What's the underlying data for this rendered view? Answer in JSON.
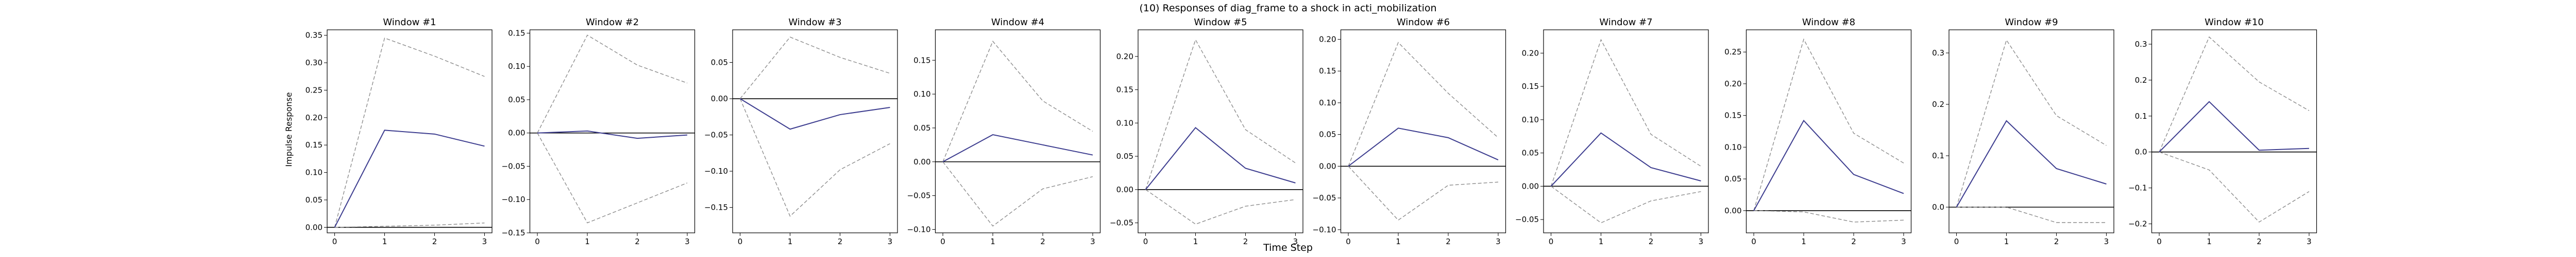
{
  "figure": {
    "suptitle": "(10) Responses of diag_frame to a shock in acti_mobilization",
    "xlabel": "Time Step",
    "ylabel": "Impulse Response"
  },
  "colors": {
    "irf": "#3d3d8f",
    "band": "#8c8c8c",
    "zero": "#000000"
  },
  "chart_data": [
    {
      "type": "line",
      "title": "Window #1",
      "x": [
        0,
        1,
        2,
        3
      ],
      "xticks": [
        0,
        1,
        2,
        3
      ],
      "ylim": [
        -0.01,
        0.36
      ],
      "yticks": [
        0.0,
        0.05,
        0.1,
        0.15,
        0.2,
        0.25,
        0.3,
        0.35
      ],
      "yticklabels": [
        "0.00",
        "0.05",
        "0.10",
        "0.15",
        "0.20",
        "0.25",
        "0.30",
        "0.35"
      ],
      "irf": [
        0,
        0.177,
        0.17,
        0.148
      ],
      "upper": [
        0,
        0.345,
        0.312,
        0.275
      ],
      "lower": [
        0,
        0.002,
        0.004,
        0.008
      ]
    },
    {
      "type": "line",
      "title": "Window #2",
      "x": [
        0,
        1,
        2,
        3
      ],
      "xticks": [
        0,
        1,
        2,
        3
      ],
      "ylim": [
        -0.15,
        0.155
      ],
      "yticks": [
        -0.15,
        -0.1,
        -0.05,
        0.0,
        0.05,
        0.1,
        0.15
      ],
      "yticklabels": [
        "−0.15",
        "−0.10",
        "−0.05",
        "0.00",
        "0.05",
        "0.10",
        "0.15"
      ],
      "irf": [
        0,
        0.003,
        -0.008,
        -0.003
      ],
      "upper": [
        0,
        0.147,
        0.102,
        0.075
      ],
      "lower": [
        0,
        -0.135,
        -0.105,
        -0.075
      ]
    },
    {
      "type": "line",
      "title": "Window #3",
      "x": [
        0,
        1,
        2,
        3
      ],
      "xticks": [
        0,
        1,
        2,
        3
      ],
      "ylim": [
        -0.185,
        0.095
      ],
      "yticks": [
        -0.15,
        -0.1,
        -0.05,
        0.0,
        0.05
      ],
      "yticklabels": [
        "−0.15",
        "−0.10",
        "−0.05",
        "0.00",
        "0.05"
      ],
      "irf": [
        0,
        -0.042,
        -0.022,
        -0.012
      ],
      "upper": [
        0,
        0.085,
        0.057,
        0.035
      ],
      "lower": [
        0,
        -0.162,
        -0.098,
        -0.062
      ]
    },
    {
      "type": "line",
      "title": "Window #4",
      "x": [
        0,
        1,
        2,
        3
      ],
      "xticks": [
        0,
        1,
        2,
        3
      ],
      "ylim": [
        -0.105,
        0.195
      ],
      "yticks": [
        -0.1,
        -0.05,
        0.0,
        0.05,
        0.1,
        0.15
      ],
      "yticklabels": [
        "−0.10",
        "−0.05",
        "0.00",
        "0.05",
        "0.10",
        "0.15"
      ],
      "irf": [
        0,
        0.04,
        0.025,
        0.01
      ],
      "upper": [
        0,
        0.178,
        0.09,
        0.045
      ],
      "lower": [
        0,
        -0.095,
        -0.04,
        -0.022
      ]
    },
    {
      "type": "line",
      "title": "Window #5",
      "x": [
        0,
        1,
        2,
        3
      ],
      "xticks": [
        0,
        1,
        2,
        3
      ],
      "ylim": [
        -0.065,
        0.24
      ],
      "yticks": [
        -0.05,
        0.0,
        0.05,
        0.1,
        0.15,
        0.2
      ],
      "yticklabels": [
        "−0.05",
        "0.00",
        "0.05",
        "0.10",
        "0.15",
        "0.20"
      ],
      "irf": [
        0,
        0.093,
        0.032,
        0.01
      ],
      "upper": [
        0,
        0.225,
        0.09,
        0.04
      ],
      "lower": [
        0,
        -0.052,
        -0.025,
        -0.015
      ]
    },
    {
      "type": "line",
      "title": "Window #6",
      "x": [
        0,
        1,
        2,
        3
      ],
      "xticks": [
        0,
        1,
        2,
        3
      ],
      "ylim": [
        -0.105,
        0.215
      ],
      "yticks": [
        -0.1,
        -0.05,
        0.0,
        0.05,
        0.1,
        0.15,
        0.2
      ],
      "yticklabels": [
        "−0.10",
        "−0.05",
        "0.00",
        "0.05",
        "0.10",
        "0.15",
        "0.20"
      ],
      "irf": [
        0,
        0.06,
        0.045,
        0.01
      ],
      "upper": [
        0,
        0.195,
        0.115,
        0.045
      ],
      "lower": [
        0,
        -0.085,
        -0.03,
        -0.025
      ]
    },
    {
      "type": "line",
      "title": "Window #7",
      "x": [
        0,
        1,
        2,
        3
      ],
      "xticks": [
        0,
        1,
        2,
        3
      ],
      "ylim": [
        -0.07,
        0.235
      ],
      "yticks": [
        -0.05,
        0.0,
        0.05,
        0.1,
        0.15,
        0.2
      ],
      "yticklabels": [
        "−0.05",
        "0.00",
        "0.05",
        "0.10",
        "0.15",
        "0.20"
      ],
      "irf": [
        0,
        0.08,
        0.028,
        0.008
      ],
      "upper": [
        0,
        0.22,
        0.078,
        0.03
      ],
      "lower": [
        0,
        -0.055,
        -0.022,
        -0.008
      ]
    },
    {
      "type": "line",
      "title": "Window #8",
      "x": [
        0,
        1,
        2,
        3
      ],
      "xticks": [
        0,
        1,
        2,
        3
      ],
      "ylim": [
        -0.035,
        0.285
      ],
      "yticks": [
        0.0,
        0.05,
        0.1,
        0.15,
        0.2,
        0.25
      ],
      "yticklabels": [
        "0.00",
        "0.05",
        "0.10",
        "0.15",
        "0.20",
        "0.25"
      ],
      "irf": [
        0,
        0.142,
        0.057,
        0.027
      ],
      "upper": [
        0,
        0.27,
        0.122,
        0.075
      ],
      "lower": [
        0,
        -0.002,
        -0.018,
        -0.015
      ]
    },
    {
      "type": "line",
      "title": "Window #9",
      "x": [
        0,
        1,
        2,
        3
      ],
      "xticks": [
        0,
        1,
        2,
        3
      ],
      "ylim": [
        -0.05,
        0.345
      ],
      "yticks": [
        0.0,
        0.1,
        0.2,
        0.3
      ],
      "yticklabels": [
        "0.0",
        "0.1",
        "0.2",
        "0.3"
      ],
      "irf": [
        0,
        0.168,
        0.075,
        0.045
      ],
      "upper": [
        0,
        0.325,
        0.178,
        0.12
      ],
      "lower": [
        0,
        0.0,
        -0.03,
        -0.03
      ]
    },
    {
      "type": "line",
      "title": "Window #10",
      "x": [
        0,
        1,
        2,
        3
      ],
      "xticks": [
        0,
        1,
        2,
        3
      ],
      "ylim": [
        -0.225,
        0.34
      ],
      "yticks": [
        -0.2,
        -0.1,
        0.0,
        0.1,
        0.2,
        0.3
      ],
      "yticklabels": [
        "−0.2",
        "−0.1",
        "0.0",
        "0.1",
        "0.2",
        "0.3"
      ],
      "irf": [
        0,
        0.14,
        0.005,
        0.01
      ],
      "upper": [
        0,
        0.32,
        0.195,
        0.115
      ],
      "lower": [
        0,
        -0.05,
        -0.195,
        -0.11
      ]
    }
  ]
}
